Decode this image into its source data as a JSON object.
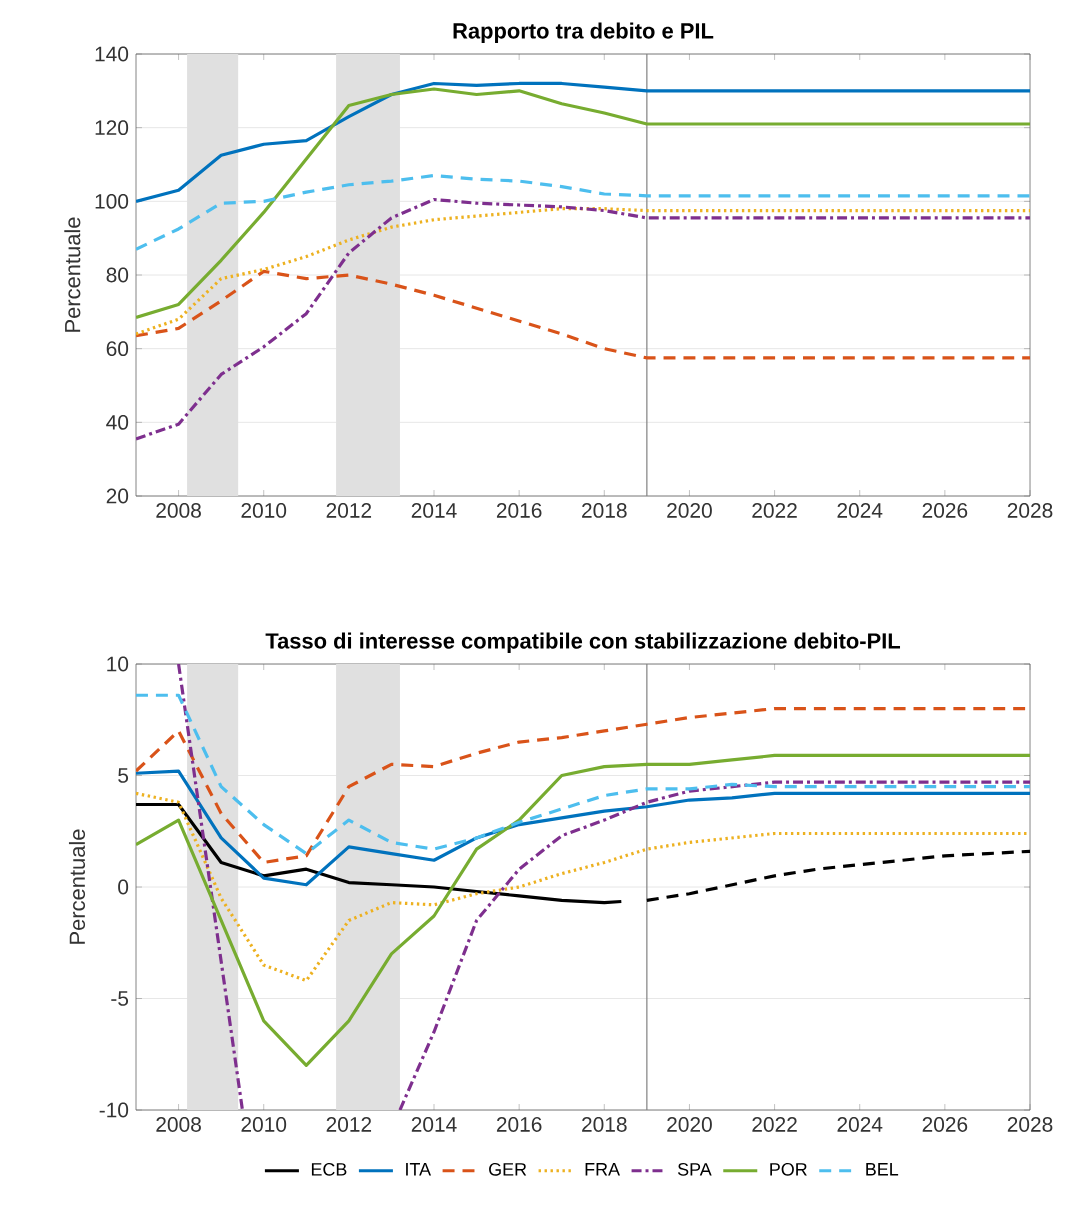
{
  "chart_data": [
    {
      "type": "line",
      "title": "Rapporto tra debito e PIL",
      "ylabel": "Percentuale",
      "x": [
        2007,
        2008,
        2009,
        2010,
        2011,
        2012,
        2013,
        2014,
        2015,
        2016,
        2017,
        2018,
        2019,
        2028
      ],
      "series": [
        {
          "color": "#0072bd",
          "line_style": "solid",
          "values": [
            100,
            103,
            112.5,
            115.5,
            116.5,
            123,
            129,
            132,
            131.5,
            132,
            132,
            131,
            130,
            130
          ]
        },
        {
          "color": "#d95319",
          "line_style": "dashed",
          "values": [
            63.5,
            65.5,
            73,
            81,
            79,
            80,
            77.5,
            74.5,
            71,
            67.5,
            64,
            60,
            57.5,
            57.5
          ]
        },
        {
          "color": "#edb120",
          "line_style": "dotted",
          "values": [
            64,
            68,
            79,
            81.5,
            85,
            89.5,
            93,
            95,
            96,
            97,
            98,
            98,
            97.5,
            97.5
          ]
        },
        {
          "color": "#7e2f8e",
          "line_style": "dashdot",
          "values": [
            35.5,
            39.5,
            53,
            60.5,
            69.5,
            86,
            95.5,
            100.5,
            99.5,
            99,
            98.5,
            97.5,
            95.5,
            95.5
          ]
        },
        {
          "color": "#77ac30",
          "line_style": "solid",
          "values": [
            68.5,
            72,
            84,
            97,
            111.5,
            126,
            129,
            130.5,
            129,
            130,
            126.5,
            124,
            121,
            121
          ]
        },
        {
          "color": "#4dbeee",
          "line_style": "dashed",
          "values": [
            87,
            92.5,
            99.5,
            100,
            102.5,
            104.5,
            105.5,
            107,
            106,
            105.5,
            104,
            102,
            101.5,
            101.5
          ]
        }
      ],
      "xlim": [
        2007,
        2028
      ],
      "xticks": [
        2008,
        2010,
        2012,
        2014,
        2016,
        2018,
        2020,
        2022,
        2024,
        2026,
        2028
      ],
      "ylim": [
        20,
        140
      ],
      "yticks": [
        20,
        40,
        60,
        80,
        100,
        120,
        140
      ],
      "grid": "y",
      "bands": [
        {
          "axis": "x",
          "from": 2008.2,
          "to": 2009.4,
          "color": "#e0e0e0"
        },
        {
          "axis": "x",
          "from": 2011.7,
          "to": 2013.2,
          "color": "#e0e0e0"
        }
      ],
      "ref_lines": [
        {
          "axis": "x",
          "value": 2019,
          "color": "#808080"
        }
      ]
    },
    {
      "type": "line",
      "title": "Tasso di interesse compatibile con stabilizzazione debito-PIL",
      "ylabel": "Percentuale",
      "x": [
        2007,
        2008,
        2009,
        2010,
        2011,
        2012,
        2013,
        2014,
        2015,
        2016,
        2017,
        2018,
        2019,
        2020,
        2021,
        2022,
        2028
      ],
      "series": [
        {
          "name": "ECB",
          "color": "#000000",
          "line_style": "solid",
          "x": [
            2007,
            2008,
            2009,
            2010,
            2011,
            2012,
            2013,
            2014,
            2015,
            2016,
            2017,
            2018,
            2018.4
          ],
          "values": [
            3.7,
            3.7,
            1.1,
            0.5,
            0.8,
            0.2,
            0.1,
            0.0,
            -0.2,
            -0.4,
            -0.6,
            -0.7,
            -0.65
          ]
        },
        {
          "name": "ITA",
          "color": "#0072bd",
          "line_style": "solid",
          "values": [
            5.1,
            5.2,
            2.2,
            0.4,
            0.1,
            1.8,
            1.5,
            1.2,
            2.2,
            2.8,
            3.1,
            3.4,
            3.6,
            3.9,
            4.0,
            4.2,
            4.2
          ]
        },
        {
          "name": "GER",
          "color": "#d95319",
          "line_style": "dashed",
          "values": [
            5.2,
            7,
            3.3,
            1.1,
            1.4,
            4.5,
            5.5,
            5.4,
            6.0,
            6.5,
            6.7,
            7.0,
            7.3,
            7.6,
            7.8,
            8.0,
            8.0
          ]
        },
        {
          "name": "FRA",
          "color": "#edb120",
          "line_style": "dotted",
          "values": [
            4.2,
            3.8,
            -0.5,
            -3.5,
            -4.2,
            -1.5,
            -0.7,
            -0.8,
            -0.3,
            0.0,
            0.6,
            1.1,
            1.7,
            2.0,
            2.2,
            2.4,
            2.4
          ]
        },
        {
          "name": "SPA",
          "color": "#7e2f8e",
          "line_style": "dashdot",
          "x": [
            2008,
            2009.5,
            2011,
            2013.2,
            2014,
            2015,
            2016,
            2017,
            2018,
            2019,
            2020,
            2021,
            2022,
            2028
          ],
          "values": [
            10,
            -10,
            null,
            -10,
            -6.5,
            -1.5,
            0.8,
            2.3,
            3.0,
            3.8,
            4.3,
            4.5,
            4.7,
            4.7
          ]
        },
        {
          "name": "POR",
          "color": "#77ac30",
          "line_style": "solid",
          "values": [
            1.9,
            3.0,
            -1.5,
            -6,
            -8,
            -6,
            -3,
            -1.3,
            1.7,
            3.0,
            5.0,
            5.4,
            5.5,
            5.5,
            5.7,
            5.9,
            5.9
          ]
        },
        {
          "name": "BEL",
          "color": "#4dbeee",
          "line_style": "dashed",
          "values": [
            8.6,
            8.6,
            4.5,
            2.8,
            1.5,
            3.0,
            2.0,
            1.7,
            2.2,
            2.9,
            3.5,
            4.1,
            4.4,
            4.4,
            4.6,
            4.5,
            4.5
          ]
        },
        {
          "color": "#000000",
          "line_style": "dashed",
          "x": [
            2019,
            2020,
            2021,
            2022,
            2023,
            2024,
            2025,
            2026,
            2027,
            2028
          ],
          "values": [
            -0.6,
            -0.3,
            0.1,
            0.5,
            0.8,
            1.0,
            1.2,
            1.4,
            1.5,
            1.6
          ]
        }
      ],
      "xlim": [
        2007,
        2028
      ],
      "xticks": [
        2008,
        2010,
        2012,
        2014,
        2016,
        2018,
        2020,
        2022,
        2024,
        2026,
        2028
      ],
      "ylim": [
        -10,
        10
      ],
      "yticks": [
        -10,
        -5,
        0,
        5,
        10
      ],
      "grid": "y",
      "legend": "bottom",
      "bands": [
        {
          "axis": "x",
          "from": 2008.2,
          "to": 2009.4,
          "color": "#e0e0e0"
        },
        {
          "axis": "x",
          "from": 2011.7,
          "to": 2013.2,
          "color": "#e0e0e0"
        }
      ],
      "ref_lines": [
        {
          "axis": "x",
          "value": 2019,
          "color": "#808080"
        }
      ]
    }
  ]
}
